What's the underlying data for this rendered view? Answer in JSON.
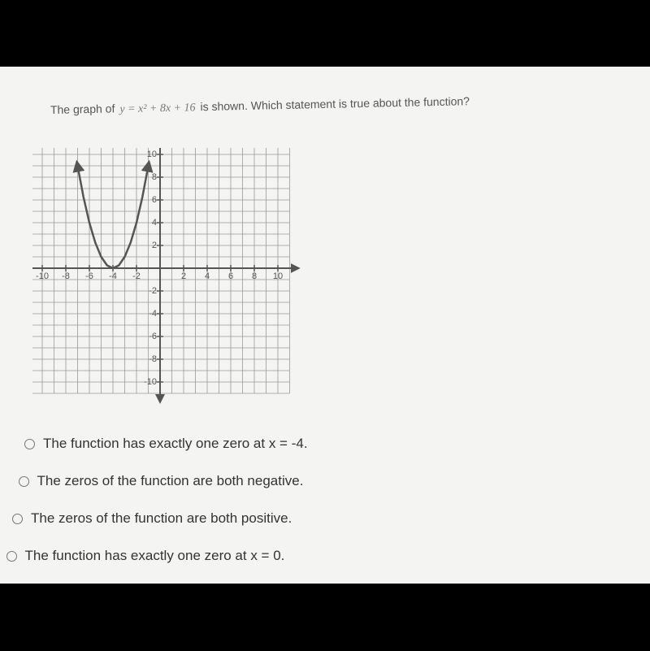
{
  "question": {
    "prefix": "The graph of",
    "equation": "y = x² + 8x + 16",
    "suffix": "is shown. Which statement is true about the function?"
  },
  "graph": {
    "type": "line",
    "xlim": [
      -10,
      10
    ],
    "ylim": [
      -10,
      10
    ],
    "xticks": [
      -10,
      -8,
      -6,
      -4,
      -2,
      2,
      4,
      6,
      8,
      10
    ],
    "yticks": [
      10,
      8,
      6,
      4,
      2,
      -2,
      -4,
      -6,
      -8,
      -10
    ],
    "grid": true,
    "color": "#555555",
    "curve": {
      "x": [
        -7,
        -6.5,
        -6,
        -5.5,
        -5,
        -4.5,
        -4,
        -3.5,
        -3,
        -2.5,
        -2,
        -1.5,
        -1
      ],
      "y": [
        9,
        6.25,
        4,
        2.25,
        1,
        0.25,
        0,
        0.25,
        1,
        2.25,
        4,
        6.25,
        9
      ]
    }
  },
  "options": [
    "The function has exactly one zero at x = -4.",
    "The zeros of the function are both negative.",
    "The zeros of the function are both positive.",
    "The function has exactly one zero at x = 0."
  ]
}
